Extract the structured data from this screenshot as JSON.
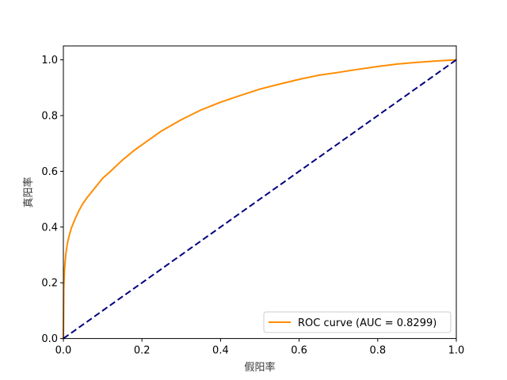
{
  "chart_data": {
    "type": "line",
    "xlabel": "假阳率",
    "ylabel": "真阳率",
    "xlim": [
      0,
      1
    ],
    "ylim": [
      0,
      1.05
    ],
    "xticks": [
      "0.0",
      "0.2",
      "0.4",
      "0.6",
      "0.8",
      "1.0"
    ],
    "yticks": [
      "0.0",
      "0.2",
      "0.4",
      "0.6",
      "0.8",
      "1.0"
    ],
    "legend_position": "lower-right",
    "grid": false,
    "series": [
      {
        "name": "ROC curve (AUC = 0.8299)",
        "color": "#ff8c00",
        "style": "solid",
        "x": [
          0,
          0.001,
          0.003,
          0.006,
          0.01,
          0.015,
          0.02,
          0.03,
          0.04,
          0.05,
          0.06,
          0.08,
          0.1,
          0.12,
          0.15,
          0.18,
          0.2,
          0.25,
          0.3,
          0.35,
          0.4,
          0.45,
          0.5,
          0.55,
          0.6,
          0.65,
          0.7,
          0.75,
          0.8,
          0.85,
          0.9,
          0.95,
          1.0
        ],
        "y": [
          0,
          0.18,
          0.25,
          0.3,
          0.34,
          0.37,
          0.395,
          0.43,
          0.46,
          0.485,
          0.505,
          0.54,
          0.575,
          0.6,
          0.64,
          0.675,
          0.695,
          0.745,
          0.785,
          0.82,
          0.848,
          0.872,
          0.895,
          0.913,
          0.93,
          0.945,
          0.955,
          0.966,
          0.976,
          0.985,
          0.991,
          0.996,
          1.0
        ]
      },
      {
        "name": "",
        "color": "#000080",
        "style": "dashed",
        "x": [
          0,
          1
        ],
        "y": [
          0,
          1
        ]
      }
    ]
  }
}
